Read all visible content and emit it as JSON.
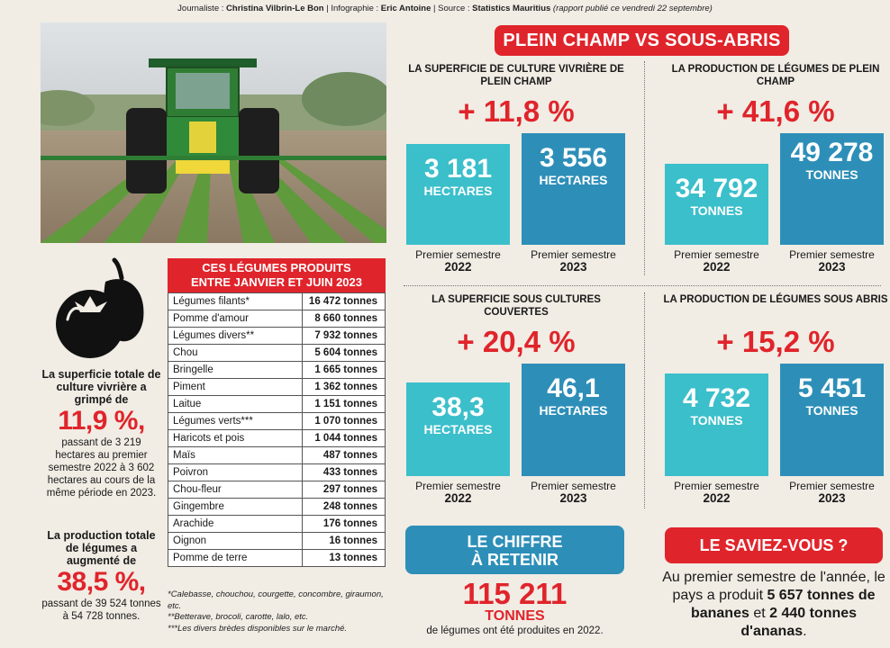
{
  "credits": {
    "journalist_label": "Journaliste : ",
    "journalist": "Christina Vilbrin-Le Bon",
    "infographic_label": " | Infographie : ",
    "infographic": "Eric Antoine",
    "source_label": " | Source : ",
    "source": "Statistics Mauritius",
    "report": " (rapport publié ce vendredi 22 septembre)"
  },
  "left": {
    "fact1_bold": "La superficie totale de culture vivrière a grimpé de",
    "fact1_pct": "11,9 %,",
    "fact1_text": "passant de 3 219 hectares au premier semestre 2022 à 3 602 hectares au cours de la même période en 2023.",
    "fact2_bold": "La production totale de légumes a augmenté de",
    "fact2_pct": "38,5 %,",
    "fact2_text": "passant de 39 524 tonnes à 54 728 tonnes."
  },
  "table": {
    "title_line1": "CES LÉGUMES PRODUITS",
    "title_line2": "ENTRE JANVIER ET JUIN 2023",
    "rows": [
      {
        "name": "Légumes filants*",
        "value": "16 472 tonnes"
      },
      {
        "name": "Pomme d'amour",
        "value": "8 660 tonnes"
      },
      {
        "name": "Légumes divers**",
        "value": "7 932 tonnes"
      },
      {
        "name": "Chou",
        "value": "5 604 tonnes"
      },
      {
        "name": "Bringelle",
        "value": "1 665 tonnes"
      },
      {
        "name": "Piment",
        "value": "1 362 tonnes"
      },
      {
        "name": "Laitue",
        "value": "1 151 tonnes"
      },
      {
        "name": "Légumes verts***",
        "value": "1 070 tonnes"
      },
      {
        "name": "Haricots et pois",
        "value": "1 044 tonnes"
      },
      {
        "name": "Maïs",
        "value": "487 tonnes"
      },
      {
        "name": "Poivron",
        "value": "433 tonnes"
      },
      {
        "name": "Chou-fleur",
        "value": "297 tonnes"
      },
      {
        "name": "Gingembre",
        "value": "248 tonnes"
      },
      {
        "name": "Arachide",
        "value": "176 tonnes"
      },
      {
        "name": "Oignon",
        "value": "16 tonnes"
      },
      {
        "name": "Pomme de terre",
        "value": "13 tonnes"
      }
    ],
    "note1": "*Calebasse, chouchou, courgette, concombre, giraumon, etc.",
    "note2": "**Betterave, brocoli, carotte, lalo, etc.",
    "note3": "***Les divers brèdes disponibles sur le marché."
  },
  "banner": "PLEIN CHAMP VS SOUS-ABRIS",
  "panels": [
    {
      "title": "LA SUPERFICIE DE CULTURE VIVRIÈRE DE PLEIN CHAMP",
      "pct": "+ 11,8 %",
      "v1": "3 181",
      "u1": "HECTARES",
      "v2": "3 556",
      "u2": "HECTARES",
      "l1a": "Premier semestre",
      "l1b": "2022",
      "l2a": "Premier semestre",
      "l2b": "2023"
    },
    {
      "title": "LA PRODUCTION DE LÉGUMES DE PLEIN CHAMP",
      "pct": "+ 41,6 %",
      "v1": "34 792",
      "u1": "TONNES",
      "v2": "49 278",
      "u2": "TONNES",
      "l1a": "Premier semestre",
      "l1b": "2022",
      "l2a": "Premier semestre",
      "l2b": "2023"
    },
    {
      "title": "LA SUPERFICIE SOUS CULTURES COUVERTES",
      "pct": "+ 20,4 %",
      "v1": "38,3",
      "u1": "HECTARES",
      "v2": "46,1",
      "u2": "HECTARES",
      "l1a": "Premier semestre",
      "l1b": "2022",
      "l2a": "Premier semestre",
      "l2b": "2023"
    },
    {
      "title": "LA PRODUCTION DE LÉGUMES SOUS ABRIS",
      "pct": "+ 15,2 %",
      "v1": "4 732",
      "u1": "TONNES",
      "v2": "5 451",
      "u2": "TONNES",
      "l1a": "Premier semestre",
      "l1b": "2022",
      "l2a": "Premier semestre",
      "l2b": "2023"
    }
  ],
  "chiffre": {
    "title_line1": "LE CHIFFRE",
    "title_line2": "À RETENIR",
    "value": "115 211",
    "unit": "TONNES",
    "desc": "de légumes ont été produites en 2022."
  },
  "saviez": {
    "title": "LE SAVIEZ-VOUS ?",
    "text1": "Au premier semestre de l'année, le pays a produit ",
    "bold1": "5 657 tonnes de bananes",
    "text2": " et ",
    "bold2": "2 440 tonnes d'ananas",
    "text3": "."
  },
  "colors": {
    "accent_red": "#e0242b",
    "bar_light": "#3bbfcb",
    "bar_dark": "#2d8fb8"
  }
}
